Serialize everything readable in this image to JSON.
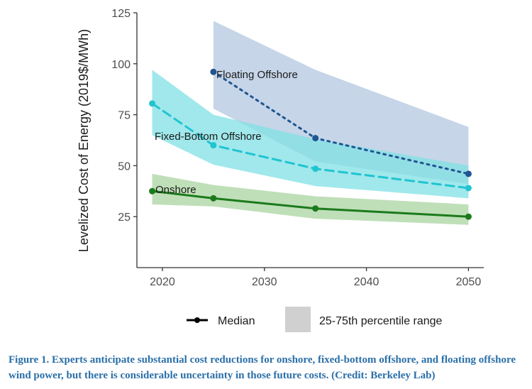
{
  "chart_data": {
    "type": "line",
    "title": "",
    "xlabel": "",
    "ylabel": "Levelized Cost of Energy (2019$/MWh)",
    "xlim": [
      2017.5,
      2051.5
    ],
    "ylim": [
      0,
      125
    ],
    "x_ticks": [
      2020,
      2030,
      2040,
      2050
    ],
    "y_ticks": [
      25,
      50,
      75,
      100,
      125
    ],
    "grid": false,
    "series": [
      {
        "name": "Floating Offshore",
        "style": "dotted",
        "color": "#1f5591",
        "band_color": "#b3c7e0",
        "x": [
          2025,
          2035,
          2050
        ],
        "median": [
          96,
          63.5,
          46
        ],
        "p25": [
          78,
          52,
          41
        ],
        "p75": [
          121,
          97,
          69
        ]
      },
      {
        "name": "Fixed-Bottom Offshore",
        "style": "dashed",
        "color": "#21c4d1",
        "band_color": "#80e0e4",
        "x": [
          2019,
          2025,
          2035,
          2050
        ],
        "median": [
          80.5,
          60,
          48.5,
          39
        ],
        "p25": [
          65,
          50.5,
          40,
          34
        ],
        "p75": [
          97,
          75,
          63,
          50
        ]
      },
      {
        "name": "Onshore",
        "style": "solid",
        "color": "#1b7a1b",
        "band_color": "#a9d4a0",
        "x": [
          2019,
          2025,
          2035,
          2050
        ],
        "median": [
          37.5,
          34,
          29,
          25
        ],
        "p25": [
          31,
          30,
          24,
          21
        ],
        "p75": [
          46,
          40.5,
          35,
          31
        ]
      }
    ],
    "legend": {
      "position": "bottom",
      "median_label": "Median",
      "range_label": "25-75th percentile range"
    }
  },
  "caption": "Figure 1. Experts anticipate substantial cost reductions for onshore, fixed-bottom offshore, and floating offshore wind power, but there is considerable uncertainty in those future costs. (Credit: Berkeley Lab)"
}
